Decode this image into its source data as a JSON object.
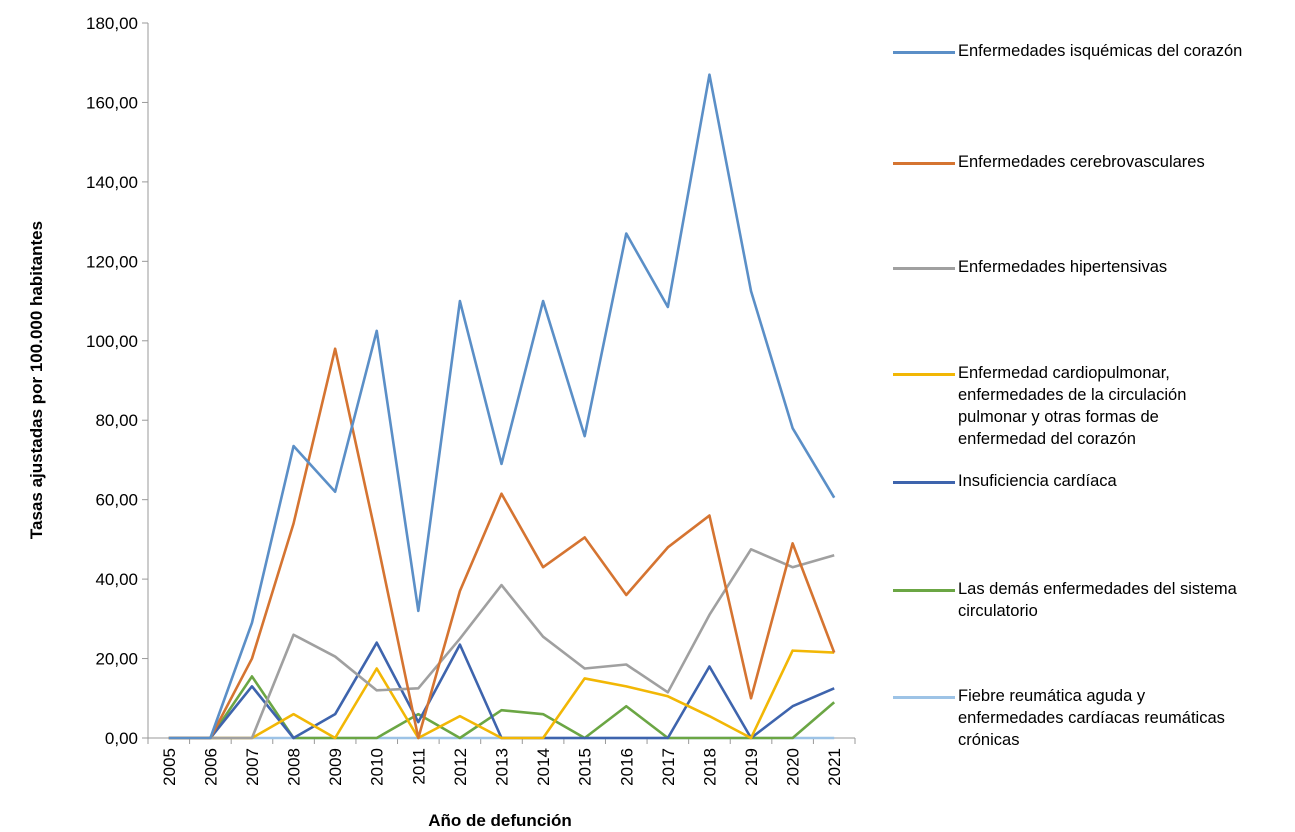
{
  "chart_data": {
    "type": "line",
    "y_label": "Tasas ajustadas por 100.000 habitantes",
    "x_label": "Año de defunción",
    "categories": [
      "2005",
      "2006",
      "2007",
      "2008",
      "2009",
      "2010",
      "2011",
      "2012",
      "2013",
      "2014",
      "2015",
      "2016",
      "2017",
      "2018",
      "2019",
      "2020",
      "2021"
    ],
    "ylim": [
      0,
      180
    ],
    "yticks": [
      {
        "value": 0,
        "label": "0,00"
      },
      {
        "value": 20,
        "label": "20,00"
      },
      {
        "value": 40,
        "label": "40,00"
      },
      {
        "value": 60,
        "label": "60,00"
      },
      {
        "value": 80,
        "label": "80,00"
      },
      {
        "value": 100,
        "label": "100,00"
      },
      {
        "value": 120,
        "label": "120,00"
      },
      {
        "value": 140,
        "label": "140,00"
      },
      {
        "value": 160,
        "label": "160,00"
      },
      {
        "value": 180,
        "label": "180,00"
      }
    ],
    "grid": false,
    "legend": "right",
    "series": [
      {
        "name": "Enfermedades isquémicas del corazón",
        "color": "#5b8fc7",
        "values": [
          0,
          0,
          29,
          73.5,
          62,
          102.5,
          32,
          110,
          69,
          110,
          76,
          127,
          108.5,
          167,
          112.5,
          78,
          60.5
        ]
      },
      {
        "name": "Enfermedades cerebrovasculares",
        "color": "#d57431",
        "values": [
          0,
          0,
          20,
          54,
          98,
          50,
          0,
          37,
          61.5,
          43,
          50.5,
          36,
          48,
          56,
          10,
          49,
          21.5
        ]
      },
      {
        "name": "Enfermedades hipertensivas",
        "color": "#a0a0a0",
        "values": [
          0,
          0,
          0,
          26,
          20.5,
          12,
          12.5,
          25,
          38.5,
          25.5,
          17.5,
          18.5,
          11.5,
          31,
          47.5,
          43,
          46
        ]
      },
      {
        "name": "Enfermedad cardiopulmonar, enfermedades de la circulación pulmonar y otras formas de enfermedad del corazón",
        "color": "#f2b705",
        "values": [
          0,
          0,
          0,
          6,
          0,
          17.5,
          0,
          5.5,
          0,
          0,
          15,
          13,
          10.5,
          5.5,
          0,
          22,
          21.5
        ]
      },
      {
        "name": "Insuficiencia cardíaca",
        "color": "#3e64ad",
        "values": [
          0,
          0,
          13,
          0,
          6,
          24,
          4,
          23.5,
          0,
          0,
          0,
          0,
          0,
          18,
          0,
          8,
          12.5
        ]
      },
      {
        "name": "Las demás enfermedades del sistema circulatorio",
        "color": "#6ba644",
        "values": [
          0,
          0,
          15.5,
          0,
          0,
          0,
          6,
          0,
          7,
          6,
          0,
          8,
          0,
          0,
          0,
          0,
          9
        ]
      },
      {
        "name": "Fiebre reumática aguda y enfermedades cardíacas reumáticas crónicas",
        "color": "#9dc3e6",
        "values": [
          0,
          0,
          0,
          0,
          0,
          0,
          0,
          0,
          0,
          0,
          0,
          0,
          0,
          0,
          0,
          0,
          0
        ]
      }
    ]
  }
}
